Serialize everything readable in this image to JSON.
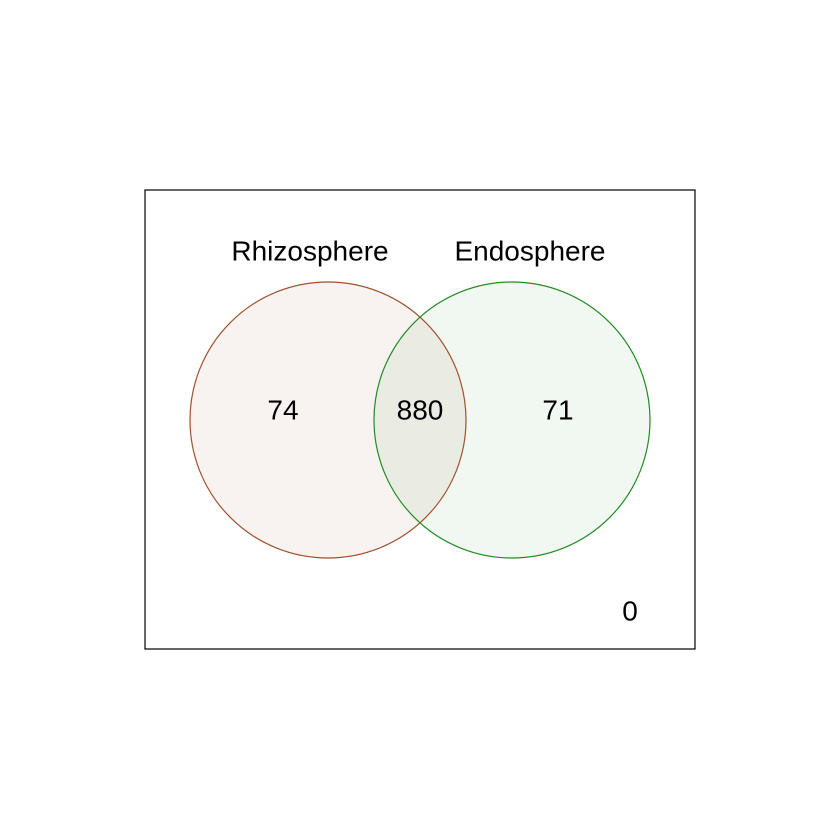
{
  "sets": [
    {
      "name": "Rhizosphere",
      "only_count": "74",
      "stroke": "#a0522d",
      "fill": "#f8f3f1"
    },
    {
      "name": "Endosphere",
      "only_count": "71",
      "stroke": "#228b22",
      "fill": "#f1f7f1"
    }
  ],
  "intersection": {
    "count": "880",
    "fill": "#eaece4"
  },
  "outside": {
    "count": "0"
  },
  "frame": {
    "stroke": "#000000"
  }
}
